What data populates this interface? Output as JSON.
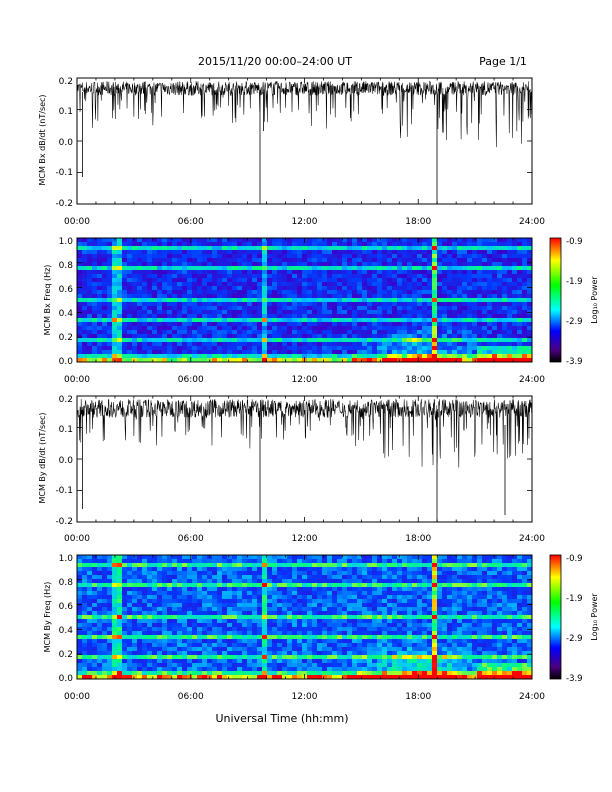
{
  "header": {
    "title": "2015/11/20  00:00–24:00 UT",
    "page": "Page 1/1"
  },
  "footer": {
    "xlabel": "Universal Time (hh:mm)"
  },
  "colorbar": {
    "label": "Log₁₀ Power",
    "ticks": [
      "-0.9",
      "-1.9",
      "-2.9",
      "-3.9"
    ],
    "colors": [
      "#ff0000",
      "#ffff00",
      "#00ff00",
      "#00ffff",
      "#0000ff",
      "#4b0082",
      "#000000"
    ]
  },
  "chart_data": [
    {
      "type": "line",
      "ylabel": "MCM Bx dB/dt (nT/sec)",
      "yticks": [
        "0.2",
        "0.1",
        "0.0",
        "-0.1",
        "-0.2"
      ],
      "ylim": [
        -0.2,
        0.2
      ],
      "xticks": [
        "00:00",
        "06:00",
        "12:00",
        "18:00",
        "24:00"
      ],
      "xlim": [
        0,
        24
      ],
      "baseline_band": [
        0.12,
        0.19
      ],
      "spikes": [
        {
          "x": 0.15,
          "y": -0.11
        },
        {
          "x": 9.7,
          "y": -0.2
        },
        {
          "x": 18.7,
          "y": -0.2
        },
        {
          "x": 10.1,
          "y": 0.03
        }
      ]
    },
    {
      "type": "heatmap",
      "ylabel": "MCM Bx Freq (Hz)",
      "yticks": [
        "1.0",
        "0.8",
        "0.6",
        "0.4",
        "0.2",
        "0.0"
      ],
      "ylim": [
        0,
        1
      ],
      "xticks": [
        "00:00",
        "06:00",
        "12:00",
        "18:00",
        "24:00"
      ],
      "xlim": [
        0,
        24
      ],
      "color_range": [
        -3.9,
        -0.9
      ]
    },
    {
      "type": "line",
      "ylabel": "MCM By dB/dt (nT/sec)",
      "yticks": [
        "0.2",
        "0.1",
        "0.0",
        "-0.1",
        "-0.2"
      ],
      "ylim": [
        -0.2,
        0.2
      ],
      "xticks": [
        "00:00",
        "06:00",
        "12:00",
        "18:00",
        "24:00"
      ],
      "xlim": [
        0,
        24
      ],
      "baseline_band": [
        0.1,
        0.19
      ],
      "spikes": [
        {
          "x": 0.15,
          "y": -0.16
        },
        {
          "x": 9.7,
          "y": -0.2
        },
        {
          "x": 18.7,
          "y": -0.2
        },
        {
          "x": 22.6,
          "y": -0.18
        }
      ]
    },
    {
      "type": "heatmap",
      "ylabel": "MCM By Freq (Hz)",
      "yticks": [
        "1.0",
        "0.8",
        "0.6",
        "0.4",
        "0.2",
        "0.0"
      ],
      "ylim": [
        0,
        1
      ],
      "xticks": [
        "00:00",
        "06:00",
        "12:00",
        "18:00",
        "24:00"
      ],
      "xlim": [
        0,
        24
      ],
      "color_range": [
        -3.9,
        -0.9
      ]
    }
  ]
}
